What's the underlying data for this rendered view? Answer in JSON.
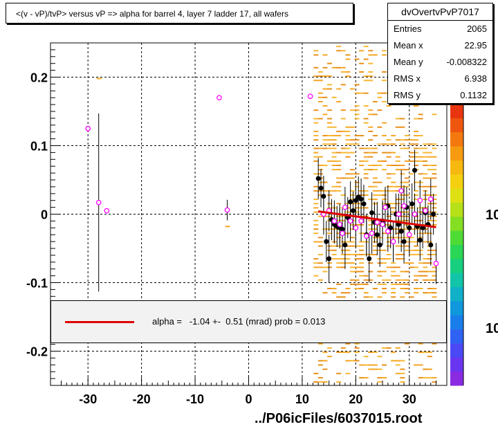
{
  "title": "<(v - vP)/tvP> versus   vP => alpha for barrel 4, layer 7 ladder 17, all wafers",
  "footer": "../P06icFiles/6037015.root",
  "stats": {
    "name": "dvOvertvPvP7017",
    "rows": [
      {
        "label": "Entries",
        "value": "2065"
      },
      {
        "label": "Mean x",
        "value": "22.95"
      },
      {
        "label": "Mean y",
        "value": "-0.008322"
      },
      {
        "label": "RMS x",
        "value": "6.938"
      },
      {
        "label": "RMS y",
        "value": "0.1132"
      }
    ]
  },
  "fit": {
    "text": "alpha =   -1.04 +-  0.51 (mrad) prob = 0.013",
    "color": "#e00000"
  },
  "colorbar": {
    "labels": [
      "10",
      "10"
    ]
  },
  "chart_data": {
    "type": "scatter",
    "title": "<(v - vP)/tvP> versus   vP => alpha for barrel 4, layer 7 ladder 17, all wafers",
    "xlabel": "",
    "ylabel": "",
    "xlim": [
      -37,
      37
    ],
    "ylim": [
      -0.25,
      0.25
    ],
    "x_ticks": [
      -30,
      -20,
      -10,
      0,
      10,
      20,
      30
    ],
    "y_ticks": [
      -0.2,
      -0.1,
      0,
      0.1,
      0.2
    ],
    "y_tick_labels": [
      "-0.2",
      "-0.1",
      "0",
      "0.1",
      "0.2"
    ],
    "grid": true,
    "fit_line": {
      "x": [
        13,
        35
      ],
      "y": [
        0.004,
        -0.019
      ],
      "color": "#e00000"
    },
    "series": [
      {
        "marker": "filled-circle",
        "color": "#000000",
        "points": [
          [
            13.0,
            0.052,
            0.03
          ],
          [
            13.5,
            0.038,
            0.028
          ],
          [
            14.0,
            0.026,
            0.03
          ],
          [
            14.5,
            -0.04,
            0.03
          ],
          [
            15.0,
            -0.065,
            0.035
          ],
          [
            15.5,
            -0.008,
            0.03
          ],
          [
            16.0,
            -0.015,
            0.028
          ],
          [
            16.5,
            -0.018,
            0.03
          ],
          [
            17.0,
            -0.02,
            0.03
          ],
          [
            17.5,
            -0.022,
            0.03
          ],
          [
            18.0,
            -0.045,
            0.035
          ],
          [
            18.5,
            -0.005,
            0.03
          ],
          [
            19.0,
            0.018,
            0.03
          ],
          [
            19.5,
            0.005,
            0.028
          ],
          [
            20.0,
            0.02,
            0.03
          ],
          [
            20.5,
            0.025,
            0.03
          ],
          [
            21.0,
            0.022,
            0.03
          ],
          [
            21.5,
            0.015,
            0.028
          ],
          [
            22.0,
            -0.03,
            0.03
          ],
          [
            22.5,
            -0.065,
            0.035
          ],
          [
            23.0,
            0.002,
            0.03
          ],
          [
            23.5,
            -0.012,
            0.03
          ],
          [
            24.0,
            -0.03,
            0.03
          ],
          [
            24.5,
            -0.045,
            0.032
          ],
          [
            25.0,
            -0.01,
            0.03
          ],
          [
            25.5,
            0.01,
            0.028
          ],
          [
            26.0,
            0.012,
            0.03
          ],
          [
            26.5,
            -0.02,
            0.03
          ],
          [
            27.0,
            -0.04,
            0.03
          ],
          [
            27.5,
            0.0,
            0.03
          ],
          [
            28.0,
            -0.015,
            0.028
          ],
          [
            28.5,
            -0.025,
            0.03
          ],
          [
            29.0,
            -0.04,
            0.032
          ],
          [
            29.5,
            0.01,
            0.03
          ],
          [
            30.0,
            -0.02,
            0.03
          ],
          [
            30.5,
            0.015,
            0.03
          ],
          [
            31.0,
            0.064,
            0.03
          ],
          [
            31.5,
            -0.018,
            0.028
          ],
          [
            32.0,
            -0.038,
            0.03
          ],
          [
            32.5,
            -0.02,
            0.03
          ],
          [
            33.0,
            0.002,
            0.03
          ],
          [
            33.5,
            -0.015,
            0.028
          ],
          [
            34.0,
            -0.045,
            0.03
          ],
          [
            34.5,
            0.0,
            0.03
          ]
        ]
      },
      {
        "marker": "open-circle",
        "color": "#ff00ff",
        "points": [
          [
            -30.0,
            0.125,
            0
          ],
          [
            -28.0,
            0.017,
            0.13
          ],
          [
            -26.5,
            0.005,
            0
          ],
          [
            -5.5,
            0.17,
            0
          ],
          [
            -4.0,
            0.006,
            0.015
          ],
          [
            11.5,
            0.172,
            0
          ],
          [
            14.0,
            0.0,
            0.03
          ],
          [
            15.0,
            0.005,
            0.03
          ],
          [
            16.0,
            -0.01,
            0.03
          ],
          [
            17.0,
            -0.015,
            0.03
          ],
          [
            17.5,
            -0.028,
            0.03
          ],
          [
            18.0,
            0.01,
            0.03
          ],
          [
            19.0,
            -0.01,
            0.03
          ],
          [
            20.0,
            -0.02,
            0.03
          ],
          [
            21.0,
            -0.01,
            0.03
          ],
          [
            22.0,
            -0.032,
            0.03
          ],
          [
            23.0,
            -0.028,
            0.03
          ],
          [
            24.0,
            -0.012,
            0.03
          ],
          [
            25.0,
            -0.015,
            0.03
          ],
          [
            25.5,
            0.01,
            0.03
          ],
          [
            26.0,
            -0.025,
            0.03
          ],
          [
            27.0,
            -0.04,
            0.03
          ],
          [
            28.0,
            0.0,
            0.03
          ],
          [
            28.5,
            0.034,
            0.03
          ],
          [
            29.0,
            0.012,
            0.03
          ],
          [
            30.0,
            -0.03,
            0.03
          ],
          [
            31.0,
            0.0,
            0.03
          ],
          [
            32.0,
            0.02,
            0.03
          ],
          [
            33.0,
            0.005,
            0.03
          ],
          [
            34.0,
            0.022,
            0.03
          ],
          [
            35.0,
            -0.072,
            0.03
          ]
        ]
      }
    ]
  }
}
